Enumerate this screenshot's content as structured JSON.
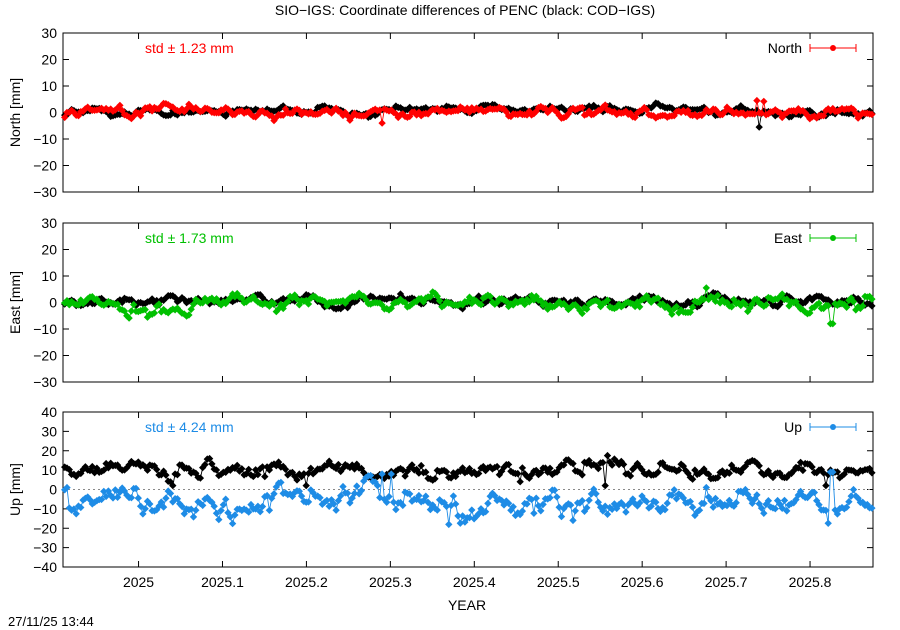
{
  "title": "SIO−IGS: Coordinate differences of PENC (black: COD−IGS)",
  "timestamp": "27/11/25 13:44",
  "xlabel": "YEAR",
  "chart_data": [
    {
      "type": "line",
      "component": "North",
      "ylabel": "North [mm]",
      "ylim": [
        -30,
        30
      ],
      "yticks": [
        -30,
        -20,
        -10,
        0,
        10,
        20,
        30
      ],
      "xlim": [
        2024.91,
        2025.875
      ],
      "xticks": [
        "2025",
        "2025.1",
        "2025.2",
        "2025.3",
        "2025.4",
        "2025.5",
        "2025.6",
        "2025.7",
        "2025.8"
      ],
      "std_label": "std ± 1.23 mm",
      "legend": "North",
      "legend_position": "top-right",
      "zero_line": false,
      "series": [
        {
          "role": "COD-IGS",
          "color": "#000000",
          "mean": 0.8,
          "std": 0.9,
          "spikes": [
            [
              2025.74,
              -5.5
            ]
          ]
        },
        {
          "role": "SIO-IGS",
          "color": "#ff0000",
          "mean": 0.0,
          "std": 1.23,
          "spikes": [
            [
              2025.29,
              -4
            ],
            [
              2025.737,
              4.5
            ],
            [
              2025.745,
              4.2
            ]
          ]
        }
      ]
    },
    {
      "type": "line",
      "component": "East",
      "ylabel": "East [mm]",
      "ylim": [
        -30,
        30
      ],
      "yticks": [
        -30,
        -20,
        -10,
        0,
        10,
        20,
        30
      ],
      "xlim": [
        2024.91,
        2025.875
      ],
      "xticks": [
        "2025",
        "2025.1",
        "2025.2",
        "2025.3",
        "2025.4",
        "2025.5",
        "2025.6",
        "2025.7",
        "2025.8"
      ],
      "std_label": "std ± 1.73 mm",
      "legend": "East",
      "legend_position": "top-right",
      "zero_line": false,
      "series": [
        {
          "role": "COD-IGS",
          "color": "#000000",
          "mean": 0.5,
          "std": 1.1,
          "spikes": []
        },
        {
          "role": "SIO-IGS",
          "color": "#00c000",
          "mean": 0.0,
          "std": 1.73,
          "spikes": [
            [
              2025.677,
              5.5
            ],
            [
              2025.826,
              -8
            ]
          ]
        }
      ]
    },
    {
      "type": "line",
      "component": "Up",
      "ylabel": "Up [mm]",
      "ylim": [
        -40,
        40
      ],
      "yticks": [
        -40,
        -30,
        -20,
        -10,
        0,
        10,
        20,
        30,
        40
      ],
      "xlim": [
        2024.91,
        2025.875
      ],
      "xticks": [
        "2025",
        "2025.1",
        "2025.2",
        "2025.3",
        "2025.4",
        "2025.5",
        "2025.6",
        "2025.7",
        "2025.8"
      ],
      "std_label": "std ± 4.24 mm",
      "legend": "Up",
      "legend_position": "top-right",
      "zero_line": true,
      "series": [
        {
          "role": "COD-IGS",
          "color": "#000000",
          "mean": 10,
          "std": 2.8,
          "spikes": [
            [
              2025.04,
              2
            ],
            [
              2025.2,
              2
            ],
            [
              2025.455,
              4
            ],
            [
              2025.555,
              2
            ],
            [
              2025.82,
              2
            ]
          ]
        },
        {
          "role": "SIO-IGS",
          "color": "#1e8ce6",
          "mean": -6,
          "std": 4.24,
          "spikes": [
            [
              2024.915,
              1
            ],
            [
              2025.29,
              8
            ],
            [
              2025.3,
              8
            ],
            [
              2025.37,
              -18
            ],
            [
              2025.826,
              9
            ]
          ]
        }
      ]
    }
  ]
}
